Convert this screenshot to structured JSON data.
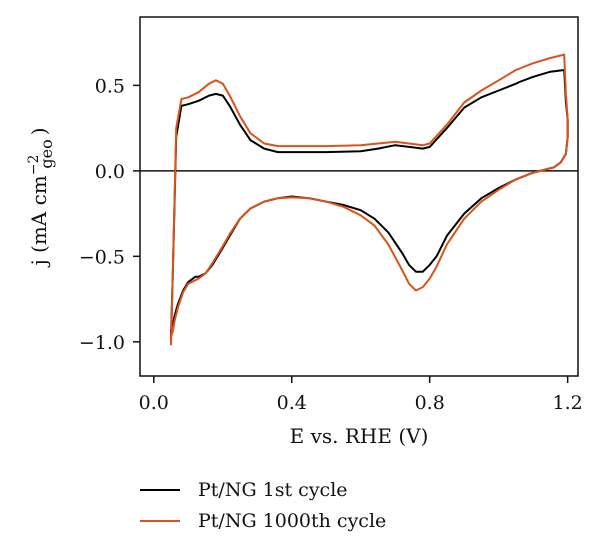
{
  "chart_data": {
    "type": "line",
    "xlabel": "E vs. RHE (V)",
    "ylabel_prefix": "j (mA cm",
    "ylabel_sup": "−2",
    "ylabel_sub": "geo",
    "ylabel_suffix": ")",
    "xlim": [
      -0.04,
      1.23
    ],
    "ylim": [
      -1.2,
      0.9
    ],
    "xticks": [
      0.0,
      0.4,
      0.8,
      1.2
    ],
    "xtick_labels": [
      "0.0",
      "0.4",
      "0.8",
      "1.2"
    ],
    "yticks": [
      0.5,
      0.0,
      -0.5,
      -1.0
    ],
    "ytick_labels": [
      "0.5",
      "0.0",
      "−0.5",
      "−1.0"
    ],
    "grid": false,
    "zero_line": true,
    "legend_position": "bottom-below",
    "series": [
      {
        "name": "Pt/NG 1st cycle",
        "color": "#000000",
        "x": [
          0.05,
          0.055,
          0.065,
          0.08,
          0.1,
          0.13,
          0.16,
          0.18,
          0.2,
          0.22,
          0.25,
          0.28,
          0.32,
          0.36,
          0.4,
          0.5,
          0.6,
          0.65,
          0.7,
          0.74,
          0.78,
          0.8,
          0.85,
          0.9,
          0.95,
          1.0,
          1.05,
          1.06,
          1.1,
          1.15,
          1.19,
          1.195,
          1.2,
          1.2,
          1.195,
          1.18,
          1.16,
          1.14,
          1.12,
          1.1,
          1.05,
          1.0,
          0.95,
          0.9,
          0.85,
          0.82,
          0.8,
          0.78,
          0.76,
          0.74,
          0.72,
          0.68,
          0.64,
          0.6,
          0.55,
          0.5,
          0.45,
          0.4,
          0.36,
          0.32,
          0.28,
          0.25,
          0.22,
          0.2,
          0.17,
          0.15,
          0.13,
          0.12,
          0.1,
          0.085,
          0.07,
          0.06,
          0.055,
          0.05,
          0.05
        ],
        "y": [
          -0.97,
          -0.6,
          0.2,
          0.38,
          0.39,
          0.41,
          0.44,
          0.45,
          0.44,
          0.38,
          0.27,
          0.18,
          0.13,
          0.11,
          0.11,
          0.11,
          0.115,
          0.13,
          0.15,
          0.14,
          0.13,
          0.14,
          0.25,
          0.37,
          0.43,
          0.47,
          0.51,
          0.52,
          0.55,
          0.58,
          0.59,
          0.4,
          0.3,
          0.2,
          0.1,
          0.05,
          0.02,
          0.01,
          0.0,
          -0.01,
          -0.05,
          -0.1,
          -0.16,
          -0.25,
          -0.38,
          -0.5,
          -0.55,
          -0.59,
          -0.59,
          -0.55,
          -0.48,
          -0.36,
          -0.28,
          -0.23,
          -0.2,
          -0.18,
          -0.16,
          -0.15,
          -0.16,
          -0.18,
          -0.22,
          -0.28,
          -0.38,
          -0.45,
          -0.55,
          -0.6,
          -0.62,
          -0.62,
          -0.65,
          -0.7,
          -0.78,
          -0.85,
          -0.9,
          -0.93,
          -0.97
        ]
      },
      {
        "name": "Pt/NG 1000th cycle",
        "color": "#d9541c",
        "x": [
          0.05,
          0.055,
          0.065,
          0.08,
          0.1,
          0.13,
          0.16,
          0.18,
          0.2,
          0.22,
          0.25,
          0.28,
          0.32,
          0.36,
          0.4,
          0.5,
          0.6,
          0.65,
          0.7,
          0.74,
          0.78,
          0.8,
          0.85,
          0.9,
          0.95,
          1.0,
          1.05,
          1.1,
          1.15,
          1.19,
          1.195,
          1.2,
          1.2,
          1.195,
          1.18,
          1.16,
          1.14,
          1.12,
          1.1,
          1.05,
          1.0,
          0.95,
          0.9,
          0.85,
          0.82,
          0.8,
          0.78,
          0.76,
          0.74,
          0.72,
          0.68,
          0.64,
          0.6,
          0.55,
          0.5,
          0.45,
          0.4,
          0.36,
          0.32,
          0.28,
          0.25,
          0.22,
          0.2,
          0.17,
          0.15,
          0.13,
          0.12,
          0.1,
          0.085,
          0.07,
          0.06,
          0.055,
          0.05,
          0.05
        ],
        "y": [
          -1.02,
          -0.6,
          0.25,
          0.42,
          0.43,
          0.46,
          0.51,
          0.53,
          0.51,
          0.44,
          0.32,
          0.22,
          0.16,
          0.145,
          0.145,
          0.145,
          0.15,
          0.16,
          0.17,
          0.16,
          0.15,
          0.16,
          0.27,
          0.4,
          0.47,
          0.53,
          0.59,
          0.63,
          0.66,
          0.68,
          0.45,
          0.3,
          0.2,
          0.1,
          0.05,
          0.02,
          0.01,
          0.0,
          -0.01,
          -0.05,
          -0.11,
          -0.18,
          -0.28,
          -0.43,
          -0.56,
          -0.63,
          -0.68,
          -0.7,
          -0.66,
          -0.58,
          -0.43,
          -0.32,
          -0.26,
          -0.21,
          -0.18,
          -0.16,
          -0.155,
          -0.16,
          -0.18,
          -0.22,
          -0.28,
          -0.37,
          -0.44,
          -0.54,
          -0.6,
          -0.63,
          -0.64,
          -0.66,
          -0.71,
          -0.8,
          -0.88,
          -0.94,
          -0.97,
          -1.02
        ]
      }
    ]
  }
}
